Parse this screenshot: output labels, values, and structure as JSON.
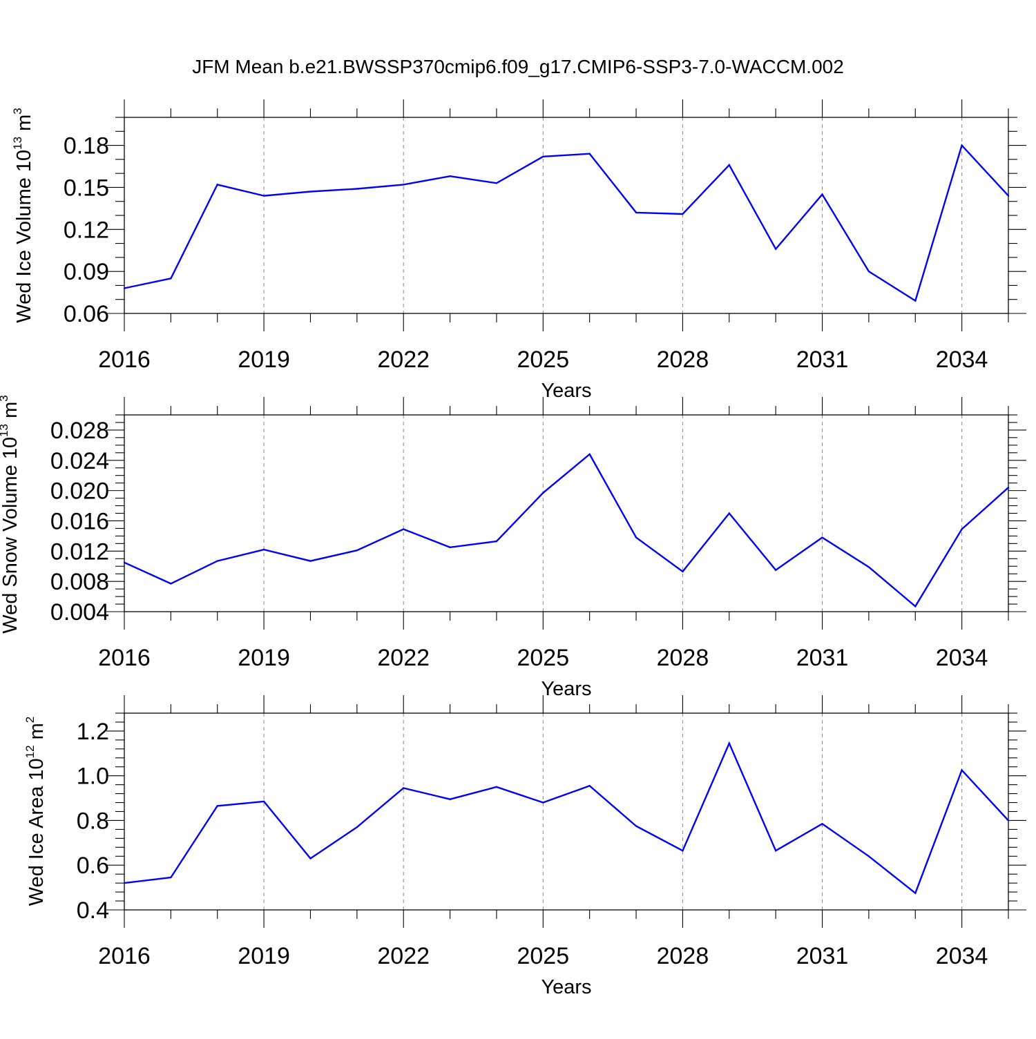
{
  "figure_title": "JFM Mean b.e21.BWSSP370cmip6.f09_g17.CMIP6-SSP3-7.0-WACCM.002",
  "colors": {
    "line": "#0000ff",
    "axes": "#000000",
    "grid": "#888888"
  },
  "chart_data": [
    {
      "type": "line",
      "title": "JFM Mean b.e21.BWSSP370cmip6.f09_g17.CMIP6-SSP3-7.0-WACCM.002",
      "xlabel": "Years",
      "ylabel_text": "Wed Ice Volume 10",
      "ylabel_sup1": "13",
      "ylabel_unit": " m",
      "ylabel_sup2": "3",
      "x": [
        2016,
        2017,
        2018,
        2019,
        2020,
        2021,
        2022,
        2023,
        2024,
        2025,
        2026,
        2027,
        2028,
        2029,
        2030,
        2031,
        2032,
        2033,
        2034,
        2035
      ],
      "series": [
        {
          "values": [
            0.078,
            0.085,
            0.152,
            0.144,
            0.147,
            0.149,
            0.152,
            0.158,
            0.153,
            0.172,
            0.174,
            0.132,
            0.131,
            0.166,
            0.106,
            0.145,
            0.09,
            0.069,
            0.18,
            0.144
          ]
        }
      ],
      "xlim": [
        2016,
        2035
      ],
      "ylim": [
        0.06,
        0.2
      ],
      "xticks": [
        2016,
        2019,
        2022,
        2025,
        2028,
        2031,
        2034
      ],
      "xtick_labels": [
        "2016",
        "2019",
        "2022",
        "2025",
        "2028",
        "2031",
        "2034"
      ],
      "yticks": [
        0.06,
        0.09,
        0.12,
        0.15,
        0.18
      ],
      "ytick_labels": [
        "0.06",
        "0.09",
        "0.12",
        "0.15",
        "0.18"
      ],
      "yminor_step": 0.01,
      "grid": "vertical dashed at major x ticks"
    },
    {
      "type": "line",
      "xlabel": "Years",
      "ylabel_text": "Wed Snow Volume 10",
      "ylabel_sup1": "13",
      "ylabel_unit": " m",
      "ylabel_sup2": "3",
      "x": [
        2016,
        2017,
        2018,
        2019,
        2020,
        2021,
        2022,
        2023,
        2024,
        2025,
        2026,
        2027,
        2028,
        2029,
        2030,
        2031,
        2032,
        2033,
        2034,
        2035
      ],
      "series": [
        {
          "values": [
            0.0105,
            0.0077,
            0.0107,
            0.0122,
            0.0107,
            0.0121,
            0.0149,
            0.0125,
            0.0133,
            0.0197,
            0.0248,
            0.0138,
            0.0093,
            0.017,
            0.0095,
            0.0138,
            0.0099,
            0.0047,
            0.0149,
            0.0204
          ]
        }
      ],
      "xlim": [
        2016,
        2035
      ],
      "ylim": [
        0.004,
        0.03
      ],
      "xticks": [
        2016,
        2019,
        2022,
        2025,
        2028,
        2031,
        2034
      ],
      "xtick_labels": [
        "2016",
        "2019",
        "2022",
        "2025",
        "2028",
        "2031",
        "2034"
      ],
      "yticks": [
        0.004,
        0.008,
        0.012,
        0.016,
        0.02,
        0.024,
        0.028
      ],
      "ytick_labels": [
        "0.004",
        "0.008",
        "0.012",
        "0.016",
        "0.020",
        "0.024",
        "0.028"
      ],
      "yminor_step": 0.001,
      "grid": "vertical dashed at major x ticks"
    },
    {
      "type": "line",
      "xlabel": "Years",
      "ylabel_text": "Wed Ice Area 10",
      "ylabel_sup1": "12",
      "ylabel_unit": " m",
      "ylabel_sup2": "2",
      "x": [
        2016,
        2017,
        2018,
        2019,
        2020,
        2021,
        2022,
        2023,
        2024,
        2025,
        2026,
        2027,
        2028,
        2029,
        2030,
        2031,
        2032,
        2033,
        2034,
        2035
      ],
      "series": [
        {
          "values": [
            0.52,
            0.545,
            0.865,
            0.885,
            0.63,
            0.77,
            0.945,
            0.895,
            0.95,
            0.88,
            0.955,
            0.775,
            0.665,
            1.145,
            0.665,
            0.785,
            0.64,
            0.475,
            1.025,
            0.8
          ]
        }
      ],
      "xlim": [
        2016,
        2035
      ],
      "ylim": [
        0.4,
        1.28
      ],
      "xticks": [
        2016,
        2019,
        2022,
        2025,
        2028,
        2031,
        2034
      ],
      "xtick_labels": [
        "2016",
        "2019",
        "2022",
        "2025",
        "2028",
        "2031",
        "2034"
      ],
      "yticks": [
        0.4,
        0.6,
        0.8,
        1.0,
        1.2
      ],
      "ytick_labels": [
        "0.4",
        "0.6",
        "0.8",
        "1.0",
        "1.2"
      ],
      "yminor_step": 0.04,
      "grid": "vertical dashed at major x ticks"
    }
  ]
}
